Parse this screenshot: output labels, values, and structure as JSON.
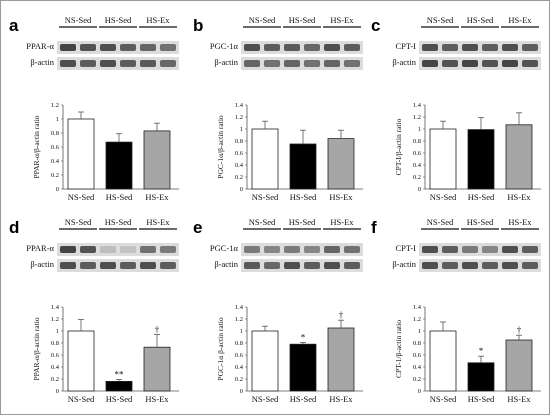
{
  "panels": [
    {
      "label": "a",
      "blot_labels": [
        "PPAR-α",
        "β-actin"
      ],
      "lane_labels": [
        "NS-Sed",
        "HS-Sed",
        "HS-Ex"
      ]
    },
    {
      "label": "b",
      "blot_labels": [
        "PGC-1α",
        "β-actin"
      ],
      "lane_labels": [
        "NS-Sed",
        "HS-Sed",
        "HS-Ex"
      ]
    },
    {
      "label": "c",
      "blot_labels": [
        "CPT-I",
        "β-actin"
      ],
      "lane_labels": [
        "NS-Sed",
        "HS-Sed",
        "HS-Ex"
      ]
    },
    {
      "label": "d",
      "blot_labels": [
        "PPAR-α",
        "β-actin"
      ],
      "lane_labels": [
        "NS-Sed",
        "HS-Sed",
        "HS-Ex"
      ]
    },
    {
      "label": "e",
      "blot_labels": [
        "PGC-1α",
        "β-actin"
      ],
      "lane_labels": [
        "NS-Sed",
        "HS-Sed",
        "HS-Ex"
      ]
    },
    {
      "label": "f",
      "blot_labels": [
        "CPT-I",
        "β-actin"
      ],
      "lane_labels": [
        "NS-Sed",
        "HS-Sed",
        "HS-Ex"
      ]
    }
  ],
  "colors": {
    "NS-Sed": "#ffffff",
    "HS-Sed": "#000000",
    "HS-Ex": "#a6a6a6"
  },
  "chart_data": [
    {
      "type": "bar",
      "categories": [
        "NS-Sed",
        "HS-Sed",
        "HS-Ex"
      ],
      "values": [
        1.0,
        0.67,
        0.83
      ],
      "errors": [
        0.1,
        0.12,
        0.11
      ],
      "significance": [
        "",
        "",
        ""
      ],
      "ylabel": "PPAR-α/β-actin ratio",
      "ylim": [
        0,
        1.2
      ],
      "ticks": [
        "0",
        "0.2",
        "0.4",
        "0.6",
        "0.8",
        "1",
        "1.2"
      ],
      "grid": false
    },
    {
      "type": "bar",
      "categories": [
        "NS-Sed",
        "HS-Sed",
        "HS-Ex"
      ],
      "values": [
        1.0,
        0.75,
        0.84
      ],
      "errors": [
        0.13,
        0.23,
        0.14
      ],
      "significance": [
        "",
        "",
        ""
      ],
      "ylabel": "PGC-1α/β-actin ratio",
      "ylim": [
        0,
        1.4
      ],
      "ticks": [
        "0",
        "0.2",
        "0.4",
        "0.6",
        "0.8",
        "1",
        "1.2",
        "1.4"
      ],
      "grid": false
    },
    {
      "type": "bar",
      "categories": [
        "NS-Sed",
        "HS-Sed",
        "HS-Ex"
      ],
      "values": [
        1.0,
        0.99,
        1.07
      ],
      "errors": [
        0.13,
        0.2,
        0.2
      ],
      "significance": [
        "",
        "",
        ""
      ],
      "ylabel": "CPT-I/β-actin ratio",
      "ylim": [
        0,
        1.4
      ],
      "ticks": [
        "0",
        "0.2",
        "0.4",
        "0.6",
        "0.8",
        "1",
        "1.2",
        "1.4"
      ],
      "grid": false
    },
    {
      "type": "bar",
      "categories": [
        "NS-Sed",
        "HS-Sed",
        "HS-Ex"
      ],
      "values": [
        1.0,
        0.16,
        0.73
      ],
      "errors": [
        0.19,
        0.03,
        0.21
      ],
      "significance": [
        "",
        "**",
        "†"
      ],
      "ylabel": "PPAR-α/β-actin ratio",
      "ylim": [
        0,
        1.4
      ],
      "ticks": [
        "0",
        "0.2",
        "0.4",
        "0.6",
        "0.8",
        "1",
        "1.2",
        "1.4"
      ],
      "grid": false
    },
    {
      "type": "bar",
      "categories": [
        "NS-Sed",
        "HS-Sed",
        "HS-Ex"
      ],
      "values": [
        1.0,
        0.78,
        1.05
      ],
      "errors": [
        0.08,
        0.03,
        0.13
      ],
      "significance": [
        "",
        "*",
        "†"
      ],
      "ylabel": "PGC-1α β-actin ratio",
      "ylim": [
        0,
        1.4
      ],
      "ticks": [
        "0",
        "0.2",
        "0.4",
        "0.6",
        "0.8",
        "1",
        "1.2",
        "1.4"
      ],
      "grid": false
    },
    {
      "type": "bar",
      "categories": [
        "NS-Sed",
        "HS-Sed",
        "HS-Ex"
      ],
      "values": [
        1.0,
        0.47,
        0.85
      ],
      "errors": [
        0.15,
        0.11,
        0.08
      ],
      "significance": [
        "",
        "*",
        "†"
      ],
      "ylabel": "CPT-1/β-actin ratio",
      "ylim": [
        0,
        1.4
      ],
      "ticks": [
        "0",
        "0.2",
        "0.4",
        "0.6",
        "0.8",
        "1",
        "1.2",
        "1.4"
      ],
      "grid": false
    }
  ]
}
